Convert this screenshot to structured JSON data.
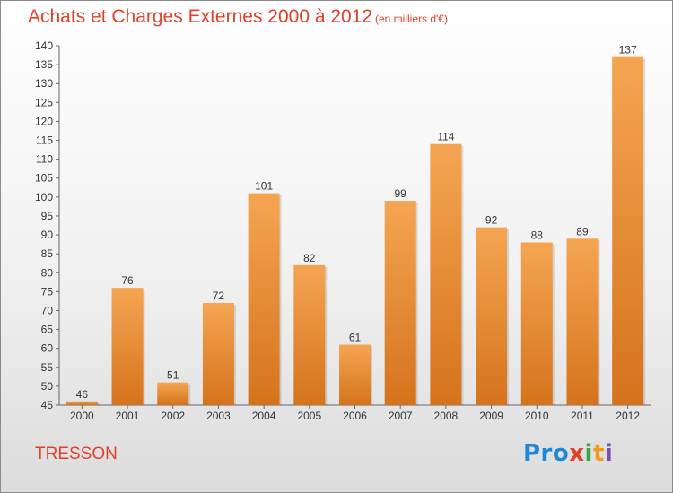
{
  "header": {
    "title": "Achats et Charges Externes 2000 à 2012",
    "subtitle": "(en milliers d'€)"
  },
  "footer": {
    "town": "TRESSON",
    "logo": [
      "Pro",
      "x",
      "i",
      "t",
      "i"
    ]
  },
  "colors": {
    "title": "#e0412a",
    "bar_top": "#f5a552",
    "bar_bottom": "#d5731c"
  },
  "chart_data": {
    "type": "bar",
    "title": "Achats et Charges Externes 2000 à 2012",
    "subtitle": "(en milliers d'€)",
    "xlabel": "",
    "ylabel": "",
    "categories": [
      "2000",
      "2001",
      "2002",
      "2003",
      "2004",
      "2005",
      "2006",
      "2007",
      "2008",
      "2009",
      "2010",
      "2011",
      "2012"
    ],
    "values": [
      46,
      76,
      51,
      72,
      101,
      82,
      61,
      99,
      114,
      92,
      88,
      89,
      137
    ],
    "ylim": [
      45,
      140
    ],
    "yticks": [
      45,
      50,
      55,
      60,
      65,
      70,
      75,
      80,
      85,
      90,
      95,
      100,
      105,
      110,
      115,
      120,
      125,
      130,
      135,
      140
    ],
    "grid": false,
    "data_labels": true
  }
}
